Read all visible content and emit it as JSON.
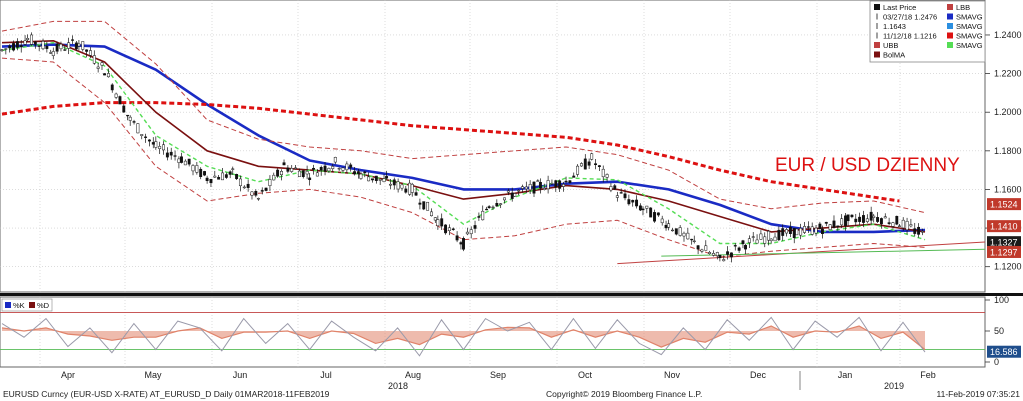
{
  "chart_data": [
    {
      "type": "line",
      "subtype": "candlestick",
      "annotation": "EUR / USD DZIENNY",
      "y_axis": {
        "side": "right",
        "min": 1.11,
        "max": 1.255,
        "ticks": [
          "1.2400",
          "1.2200",
          "1.2000",
          "1.1800",
          "1.1600",
          "1.1400",
          "1.1200"
        ]
      },
      "x_axis": {
        "months": [
          "Apr",
          "May",
          "Jun",
          "Jul",
          "Aug",
          "Sep",
          "Oct",
          "Nov",
          "Dec",
          "Jan",
          "Feb"
        ],
        "years": [
          "2018",
          "2019"
        ]
      },
      "grid": true,
      "legend_position": "top-right",
      "legend": [
        {
          "label": "Last Price",
          "color": "#111111"
        },
        {
          "label": "LBB",
          "color": "#c04040"
        },
        {
          "label": "03/27/18 1.2476",
          "color": "#111111"
        },
        {
          "label": "SMAVG",
          "color": "#1a2bc4"
        },
        {
          "label": "1.1643",
          "color": "#111111"
        },
        {
          "label": "SMAVG",
          "color": "#2b8fe0"
        },
        {
          "label": "11/12/18 1.1216",
          "color": "#111111"
        },
        {
          "label": "SMAVG",
          "color": "#dd1111"
        },
        {
          "label": "UBB",
          "color": "#c04040"
        },
        {
          "label": "SMAVG",
          "color": "#55dd55"
        },
        {
          "label": "BolMA",
          "color": "#7a1010"
        }
      ],
      "price_badges": [
        {
          "label": "1.1524",
          "color": "#c0392b"
        },
        {
          "label": "1.1410",
          "color": "#c0392b"
        },
        {
          "label": "1.1327",
          "color": "#1a1a1a"
        },
        {
          "label": "1.1297",
          "color": "#c0392b"
        }
      ],
      "series": [
        {
          "name": "Last Price",
          "color": "#111111",
          "x": [
            0,
            7,
            14,
            21,
            28,
            35,
            42,
            49,
            56,
            63,
            70,
            77,
            84,
            91,
            98,
            105,
            112,
            119,
            126,
            133,
            140,
            147,
            154,
            161,
            168,
            175,
            182,
            189,
            196,
            203,
            210,
            217,
            224,
            231,
            238,
            245,
            252
          ],
          "values": [
            1.232,
            1.238,
            1.232,
            1.236,
            1.222,
            1.196,
            1.182,
            1.176,
            1.166,
            1.168,
            1.155,
            1.172,
            1.168,
            1.174,
            1.168,
            1.164,
            1.16,
            1.144,
            1.132,
            1.152,
            1.158,
            1.162,
            1.164,
            1.176,
            1.158,
            1.15,
            1.142,
            1.132,
            1.124,
            1.132,
            1.136,
            1.138,
            1.14,
            1.144,
            1.146,
            1.143,
            1.136
          ]
        },
        {
          "name": "SMAVG",
          "color": "#1a2bc4",
          "x": [
            0,
            14,
            28,
            42,
            56,
            70,
            84,
            98,
            112,
            126,
            140,
            154,
            168,
            182,
            196,
            210,
            224,
            238,
            252
          ],
          "values": [
            1.234,
            1.235,
            1.234,
            1.222,
            1.204,
            1.188,
            1.175,
            1.17,
            1.166,
            1.16,
            1.16,
            1.163,
            1.164,
            1.16,
            1.152,
            1.142,
            1.138,
            1.138,
            1.139
          ]
        },
        {
          "name": "SMAVG",
          "color": "#dd1111",
          "x": [
            0,
            14,
            28,
            42,
            56,
            70,
            84,
            98,
            112,
            126,
            140,
            154,
            168,
            182,
            196,
            210,
            224,
            238,
            245
          ],
          "values": [
            1.199,
            1.203,
            1.205,
            1.205,
            1.204,
            1.202,
            1.199,
            1.196,
            1.193,
            1.191,
            1.189,
            1.187,
            1.183,
            1.177,
            1.17,
            1.164,
            1.16,
            1.156,
            1.154
          ]
        },
        {
          "name": "BolMA",
          "color": "#7a1010",
          "x": [
            0,
            14,
            28,
            42,
            56,
            70,
            84,
            98,
            112,
            126,
            140,
            154,
            168,
            182,
            196,
            210,
            224,
            238,
            252
          ],
          "values": [
            1.236,
            1.237,
            1.226,
            1.2,
            1.18,
            1.172,
            1.17,
            1.168,
            1.162,
            1.155,
            1.158,
            1.162,
            1.16,
            1.154,
            1.146,
            1.138,
            1.14,
            1.142,
            1.138
          ]
        },
        {
          "name": "UBB",
          "color": "#c04040",
          "x": [
            0,
            14,
            28,
            42,
            56,
            70,
            84,
            98,
            112,
            126,
            140,
            154,
            168,
            182,
            196,
            210,
            224,
            238,
            252
          ],
          "values": [
            1.242,
            1.247,
            1.247,
            1.225,
            1.196,
            1.186,
            1.182,
            1.18,
            1.176,
            1.178,
            1.18,
            1.182,
            1.178,
            1.17,
            1.155,
            1.15,
            1.153,
            1.154,
            1.148
          ]
        },
        {
          "name": "LBB",
          "color": "#c04040",
          "x": [
            0,
            14,
            28,
            42,
            56,
            70,
            84,
            98,
            112,
            126,
            140,
            154,
            168,
            182,
            196,
            210,
            224,
            238,
            252
          ],
          "values": [
            1.228,
            1.226,
            1.205,
            1.172,
            1.154,
            1.158,
            1.16,
            1.156,
            1.148,
            1.134,
            1.136,
            1.142,
            1.144,
            1.134,
            1.125,
            1.128,
            1.13,
            1.132,
            1.13
          ]
        },
        {
          "name": "SMAVG",
          "color": "#55dd55",
          "x": [
            0,
            14,
            28,
            42,
            56,
            70,
            84,
            98,
            112,
            126,
            140,
            154,
            168,
            182,
            196,
            210,
            224,
            238,
            252
          ],
          "values": [
            1.232,
            1.236,
            1.224,
            1.188,
            1.172,
            1.164,
            1.17,
            1.168,
            1.162,
            1.142,
            1.156,
            1.166,
            1.165,
            1.15,
            1.132,
            1.132,
            1.138,
            1.142,
            1.134
          ]
        }
      ]
    },
    {
      "type": "line",
      "y_axis": {
        "side": "right",
        "min": 0,
        "max": 100,
        "ticks": [
          "100",
          "50",
          "0"
        ]
      },
      "legend": [
        {
          "label": "%K",
          "color": "#1a2bc4"
        },
        {
          "label": "%D",
          "color": "#7a1010"
        }
      ],
      "price_badges": [
        {
          "label": "16.586",
          "color": "#1f4e8c"
        }
      ],
      "series": [
        {
          "name": "%K",
          "color": "#9a9aaa",
          "x": [
            0,
            6,
            12,
            18,
            24,
            30,
            36,
            42,
            48,
            54,
            60,
            66,
            72,
            78,
            84,
            90,
            96,
            102,
            108,
            114,
            120,
            126,
            132,
            138,
            144,
            150,
            156,
            162,
            168,
            174,
            180,
            186,
            192,
            198,
            204,
            210,
            216,
            222,
            228,
            234,
            240,
            246,
            252
          ],
          "values": [
            62,
            40,
            70,
            25,
            55,
            15,
            62,
            20,
            66,
            55,
            18,
            70,
            30,
            62,
            20,
            66,
            40,
            18,
            55,
            10,
            68,
            20,
            70,
            50,
            64,
            20,
            70,
            22,
            68,
            30,
            12,
            55,
            20,
            68,
            35,
            72,
            20,
            66,
            40,
            72,
            18,
            64,
            16
          ]
        },
        {
          "name": "%D",
          "color": "#e0836a",
          "x": [
            0,
            6,
            12,
            18,
            24,
            30,
            36,
            42,
            48,
            54,
            60,
            66,
            72,
            78,
            84,
            90,
            96,
            102,
            108,
            114,
            120,
            126,
            132,
            138,
            144,
            150,
            156,
            162,
            168,
            174,
            180,
            186,
            192,
            198,
            204,
            210,
            216,
            222,
            228,
            234,
            240,
            246,
            252
          ],
          "values": [
            55,
            50,
            55,
            45,
            42,
            35,
            40,
            40,
            50,
            55,
            38,
            48,
            48,
            50,
            38,
            50,
            46,
            30,
            38,
            28,
            45,
            40,
            52,
            56,
            55,
            40,
            52,
            40,
            50,
            40,
            24,
            38,
            32,
            48,
            45,
            58,
            40,
            50,
            48,
            58,
            38,
            48,
            20
          ]
        }
      ]
    }
  ],
  "footer": {
    "left": "EURUSD Curncy (EUR-USD X-RATE) AT_EURUSD_D  Daily 01MAR2018-11FEB2019",
    "center": "Copyright© 2019 Bloomberg Finance L.P.",
    "right": "11-Feb-2019 07:35:21"
  },
  "colors": {
    "grid": "#c8c8c8",
    "up": "#ffffff",
    "down": "#111111"
  }
}
